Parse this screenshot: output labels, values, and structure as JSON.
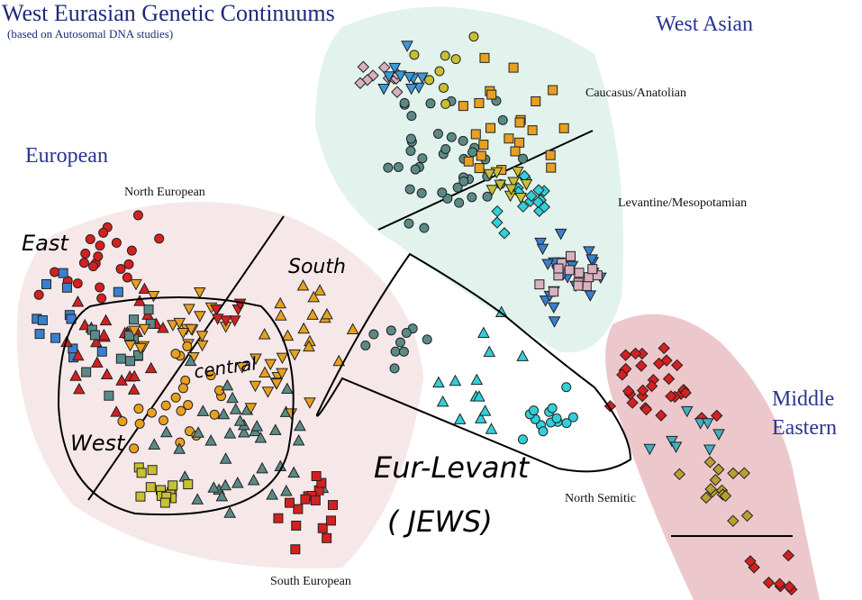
{
  "title": "West Eurasian Genetic Continuums",
  "subtitle": "(based on Autosomal DNA studies)",
  "regions": {
    "west_asian": "West Asian",
    "caucasus": "Caucasus/Anatolian",
    "levantine": "Levantine/Mesopotamian",
    "european": "European",
    "north_european": "North European",
    "south_european": "South European",
    "north_semitic": "North Semitic",
    "middle_eastern_1": "Middle",
    "middle_eastern_2": "Eastern"
  },
  "annotations": {
    "east": "East",
    "south": "South",
    "central": "central",
    "west": "West",
    "eur_levant": "Eur-Levant",
    "jews": "( JEWS)"
  },
  "chart_data": {
    "type": "scatter",
    "title": "West Eurasian Genetic Continuums",
    "xlim": [
      -50,
      50
    ],
    "ylim": [
      -35,
      35
    ],
    "grid": false,
    "clusters": [
      {
        "shape": "circle",
        "color": "#d42020",
        "x": -38.5,
        "y": 4.5,
        "spread": 3,
        "n": 22
      },
      {
        "shape": "square",
        "color": "#3a7fd0",
        "x": -43.7,
        "y": -2.9,
        "spread": 3,
        "n": 14
      },
      {
        "shape": "triangle",
        "color": "#d42020",
        "x": -36.4,
        "y": -6,
        "spread": 3,
        "n": 30
      },
      {
        "shape": "square",
        "color": "#5a8a88",
        "x": -37,
        "y": -5,
        "spread": 2.5,
        "n": 12
      },
      {
        "shape": "invtriangle",
        "color": "#e8a020",
        "x": -30,
        "y": -2.9,
        "spread": 3,
        "n": 22
      },
      {
        "shape": "circle",
        "color": "#e8a020",
        "x": -29,
        "y": -12.3,
        "spread": 3,
        "n": 22
      },
      {
        "shape": "triangle",
        "color": "#5a8a88",
        "x": -21.8,
        "y": -16.5,
        "spread": 4,
        "n": 40
      },
      {
        "shape": "square",
        "color": "#c8c030",
        "x": -31.2,
        "y": -22.3,
        "spread": 1.5,
        "n": 14
      },
      {
        "shape": "square",
        "color": "#d42020",
        "x": -14.5,
        "y": -24.4,
        "spread": 2,
        "n": 16
      },
      {
        "shape": "triangle",
        "color": "#e8a020",
        "x": -14.5,
        "y": -3.9,
        "spread": 3,
        "n": 16
      },
      {
        "shape": "invtriangle",
        "color": "#e8a020",
        "x": -18.7,
        "y": -9.2,
        "spread": 2.5,
        "n": 14
      },
      {
        "shape": "invtriangle",
        "color": "#d42020",
        "x": -23,
        "y": -2,
        "spread": 1.5,
        "n": 6
      },
      {
        "shape": "circle",
        "color": "#5a8a88",
        "x": -4,
        "y": -5,
        "spread": 1.5,
        "n": 10
      },
      {
        "shape": "triangle",
        "color": "#30d0d8",
        "x": 6.4,
        "y": -9.2,
        "spread": 3,
        "n": 14
      },
      {
        "shape": "circle",
        "color": "#30d0d8",
        "x": 13.7,
        "y": -14.4,
        "spread": 2,
        "n": 14
      },
      {
        "shape": "diamond",
        "color": "#d8b0c0",
        "x": -6.1,
        "y": 25.5,
        "spread": 1.5,
        "n": 10
      },
      {
        "shape": "invtriangle",
        "color": "#3a9ad8",
        "x": -4,
        "y": 26,
        "spread": 1.5,
        "n": 10
      },
      {
        "shape": "circle",
        "color": "#5a8a88",
        "x": 1.2,
        "y": 16,
        "spread": 4,
        "n": 40
      },
      {
        "shape": "square",
        "color": "#e8a020",
        "x": 8.5,
        "y": 21.3,
        "spread": 3,
        "n": 24
      },
      {
        "shape": "circle",
        "color": "#c8c030",
        "x": 2,
        "y": 27,
        "spread": 2,
        "n": 8
      },
      {
        "shape": "diamond",
        "color": "#30d0d8",
        "x": 11.6,
        "y": 11.9,
        "spread": 2,
        "n": 16
      },
      {
        "shape": "invtriangle",
        "color": "#c8c030",
        "x": 10,
        "y": 13,
        "spread": 2,
        "n": 10
      },
      {
        "shape": "invtriangle",
        "color": "#3a7fd0",
        "x": 14.8,
        "y": 1.4,
        "spread": 2.5,
        "n": 22
      },
      {
        "shape": "square",
        "color": "#d8b0c0",
        "x": 16.9,
        "y": 3.5,
        "spread": 2,
        "n": 14
      },
      {
        "shape": "diamond",
        "color": "#d42020",
        "x": 26.3,
        "y": -10.2,
        "spread": 2.5,
        "n": 30
      },
      {
        "shape": "invtriangle",
        "color": "#40b0c0",
        "x": 30,
        "y": -15,
        "spread": 2,
        "n": 8
      },
      {
        "shape": "diamond",
        "color": "#b8a030",
        "x": 33.6,
        "y": -21.8,
        "spread": 2.5,
        "n": 14
      },
      {
        "shape": "diamond",
        "color": "#d42020",
        "x": 39.9,
        "y": -32.3,
        "spread": 1.5,
        "n": 8
      }
    ]
  }
}
